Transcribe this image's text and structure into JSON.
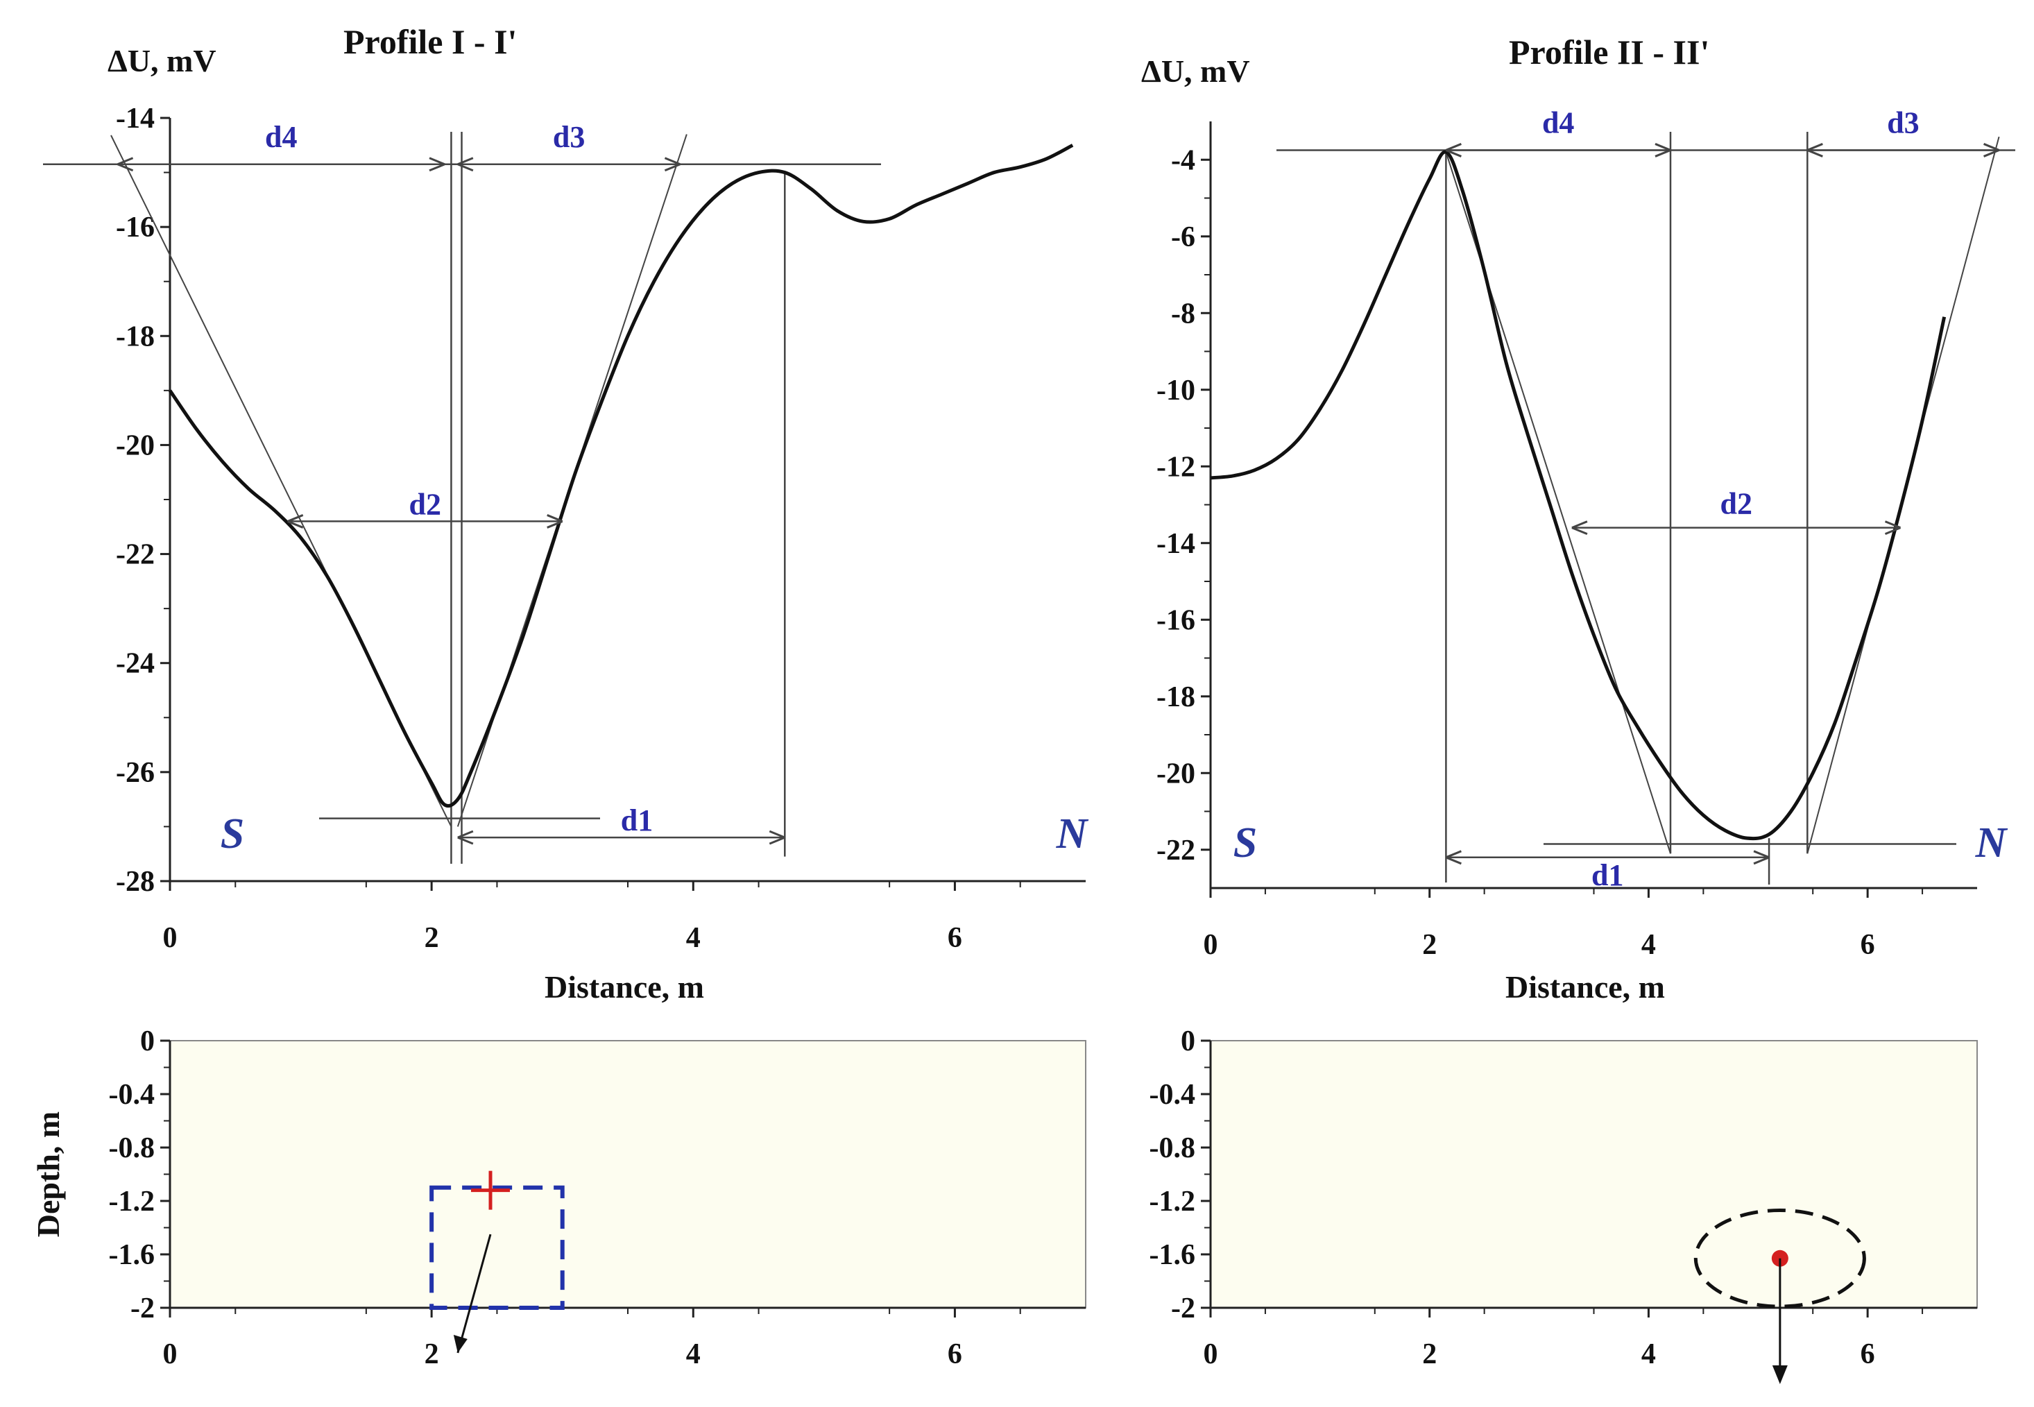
{
  "figure_colors": {
    "curve": "#111111",
    "guide": "#444444",
    "label_blue": "#2a2aa8",
    "direction_blue": "#2a3a9c",
    "model_fill": "#fdfdf0",
    "source_red": "#d42020",
    "box_dash": "#2233aa"
  },
  "chart_data": [
    {
      "id": "profile1",
      "type": "line",
      "title": "Profile I - I'",
      "ylabel": "ΔU, mV",
      "xlabel": "Distance, m",
      "xlim": [
        0,
        7
      ],
      "ylim": [
        -28,
        -14
      ],
      "x_ticks": [
        0,
        2,
        4,
        6
      ],
      "y_ticks": [
        -14,
        -16,
        -18,
        -20,
        -22,
        -24,
        -26,
        -28
      ],
      "grid": false,
      "series": [
        {
          "x": [
            0,
            0.2,
            0.4,
            0.6,
            0.8,
            1.0,
            1.2,
            1.4,
            1.6,
            1.8,
            2.0,
            2.1,
            2.2,
            2.3,
            2.5,
            2.7,
            2.9,
            3.1,
            3.3,
            3.5,
            3.7,
            3.9,
            4.1,
            4.3,
            4.5,
            4.7,
            4.9,
            5.1,
            5.3,
            5.5,
            5.7,
            5.9,
            6.1,
            6.3,
            6.5,
            6.7,
            6.9
          ],
          "y": [
            -19.0,
            -19.7,
            -20.3,
            -20.8,
            -21.2,
            -21.7,
            -22.4,
            -23.3,
            -24.3,
            -25.3,
            -26.2,
            -26.6,
            -26.5,
            -26.0,
            -24.8,
            -23.5,
            -22.0,
            -20.5,
            -19.2,
            -18.0,
            -17.0,
            -16.2,
            -15.6,
            -15.2,
            -15.0,
            -15.0,
            -15.3,
            -15.7,
            -15.9,
            -15.85,
            -15.6,
            -15.4,
            -15.2,
            -15.0,
            -14.9,
            -14.75,
            -14.5
          ]
        }
      ],
      "annotations": {
        "distance_labels": [
          "d1",
          "d2",
          "d3",
          "d4"
        ],
        "reference_level": -14.85,
        "d1": {
          "x_from": 2.2,
          "x_to": 4.7,
          "y": -27.2
        },
        "d2": {
          "x_from": 0.9,
          "x_to": 3.0,
          "y": -21.4
        },
        "d3": {
          "x_from": 2.2,
          "x_to": 3.9,
          "y": -14.85
        },
        "d4": {
          "x_from": -0.4,
          "x_to": 2.1,
          "y": -14.85
        },
        "left_direction": "S",
        "right_direction": "N"
      }
    },
    {
      "id": "profile2",
      "type": "line",
      "title": "Profile II - II'",
      "ylabel": "ΔU, mV",
      "xlabel": "Distance, m",
      "xlim": [
        0,
        7
      ],
      "ylim": [
        -23,
        -3
      ],
      "x_ticks": [
        0,
        2,
        4,
        6
      ],
      "y_ticks": [
        -4,
        -6,
        -8,
        -10,
        -12,
        -14,
        -16,
        -18,
        -20,
        -22
      ],
      "grid": false,
      "series": [
        {
          "x": [
            0,
            0.2,
            0.4,
            0.6,
            0.8,
            1.0,
            1.2,
            1.4,
            1.6,
            1.8,
            2.0,
            2.15,
            2.3,
            2.5,
            2.7,
            2.9,
            3.1,
            3.3,
            3.5,
            3.7,
            3.9,
            4.1,
            4.3,
            4.5,
            4.7,
            4.9,
            5.1,
            5.3,
            5.5,
            5.7,
            5.9,
            6.1,
            6.3,
            6.5,
            6.7
          ],
          "y": [
            -12.3,
            -12.25,
            -12.1,
            -11.8,
            -11.3,
            -10.5,
            -9.5,
            -8.3,
            -7.0,
            -5.7,
            -4.5,
            -3.8,
            -4.8,
            -6.9,
            -9.3,
            -11.2,
            -13.0,
            -14.8,
            -16.4,
            -17.8,
            -18.8,
            -19.7,
            -20.5,
            -21.1,
            -21.5,
            -21.7,
            -21.6,
            -21.0,
            -20.0,
            -18.7,
            -17.0,
            -15.2,
            -13.1,
            -10.8,
            -8.1
          ]
        }
      ],
      "annotations": {
        "distance_labels": [
          "d1",
          "d2",
          "d3",
          "d4"
        ],
        "reference_level": -3.75,
        "d1": {
          "x_from": 2.15,
          "x_to": 5.1,
          "y": -22.2
        },
        "d2": {
          "x_from": 3.3,
          "x_to": 6.3,
          "y": -13.6
        },
        "d3": {
          "x_from": 5.45,
          "x_to": 7.2,
          "y": -3.75
        },
        "d4": {
          "x_from": 2.15,
          "x_to": 4.2,
          "y": -3.75
        },
        "left_direction": "S",
        "right_direction": "N"
      }
    },
    {
      "id": "model1",
      "type": "scatter",
      "ylabel": "Depth, m",
      "xlim": [
        0,
        7
      ],
      "ylim": [
        -2,
        0
      ],
      "x_ticks": [
        0,
        2,
        4,
        6
      ],
      "y_ticks": [
        0,
        -0.4,
        -0.8,
        -1.2,
        -1.6,
        -2
      ],
      "grid": false,
      "source": {
        "marker": "cross",
        "x": 2.45,
        "y": -1.12
      },
      "body": {
        "shape": "rectangle",
        "x_min": 2.0,
        "x_max": 3.0,
        "y_min": -2.0,
        "y_max": -1.1
      }
    },
    {
      "id": "model2",
      "type": "scatter",
      "xlim": [
        0,
        7
      ],
      "ylim": [
        -2,
        0
      ],
      "x_ticks": [
        0,
        2,
        4,
        6
      ],
      "y_ticks": [
        0,
        -0.4,
        -0.8,
        -1.2,
        -1.6,
        -2
      ],
      "grid": false,
      "source": {
        "marker": "dot",
        "x": 5.2,
        "y": -1.63
      },
      "body": {
        "shape": "ellipse",
        "cx": 5.2,
        "cy": -1.63,
        "rx": 0.77,
        "ry": 0.36
      }
    }
  ]
}
